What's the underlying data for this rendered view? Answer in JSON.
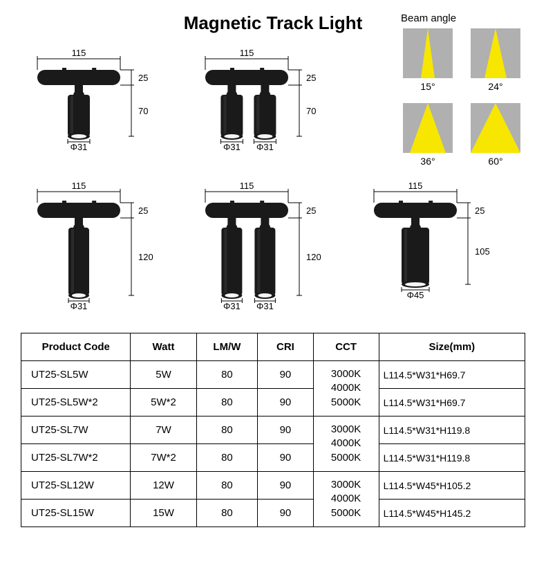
{
  "title": "Magnetic Track Light",
  "beam": {
    "title": "Beam angle",
    "options": [
      {
        "label": "15°",
        "half_base": 10
      },
      {
        "label": "24°",
        "half_base": 16
      },
      {
        "label": "36°",
        "half_base": 26
      },
      {
        "label": "60°",
        "half_base": 36
      }
    ],
    "box_bg": "#b0b0b0",
    "tri_color": "#f7e600"
  },
  "drawings": [
    {
      "id": "sl5w-single",
      "heads": 1,
      "row": 0,
      "dim_top": "115",
      "dim_track_h": "25",
      "dim_body_h": "70",
      "dim_dia": "Φ31",
      "body_len": 60,
      "body_dia": 32
    },
    {
      "id": "sl5w-double",
      "heads": 2,
      "row": 0,
      "dim_top": "115",
      "dim_track_h": "25",
      "dim_body_h": "70",
      "dim_dia": "Φ31",
      "body_len": 60,
      "body_dia": 32
    },
    {
      "id": "blank",
      "blank": true,
      "row": 0
    },
    {
      "id": "sl7w-single",
      "heads": 1,
      "row": 1,
      "dim_top": "115",
      "dim_track_h": "25",
      "dim_body_h": "120",
      "dim_dia": "Φ31",
      "body_len": 98,
      "body_dia": 30
    },
    {
      "id": "sl7w-double",
      "heads": 2,
      "row": 1,
      "dim_top": "115",
      "dim_track_h": "25",
      "dim_body_h": "120",
      "dim_dia": "Φ31",
      "body_len": 98,
      "body_dia": 30
    },
    {
      "id": "sl12w-single",
      "heads": 1,
      "row": 1,
      "dim_top": "115",
      "dim_track_h": "25",
      "dim_body_h": "105",
      "dim_dia": "Φ45",
      "body_len": 82,
      "body_dia": 40
    }
  ],
  "table": {
    "headers": [
      "Product Code",
      "Watt",
      "LM/W",
      "CRI",
      "CCT",
      "Size(mm)"
    ],
    "cct_group": "3000K\n4000K\n5000K",
    "rows": [
      {
        "code": "UT25-SL5W",
        "watt": "5W",
        "lmw": "80",
        "cri": "90",
        "size": "L114.5*W31*H69.7"
      },
      {
        "code": "UT25-SL5W*2",
        "watt": "5W*2",
        "lmw": "80",
        "cri": "90",
        "size": "L114.5*W31*H69.7"
      },
      {
        "code": "UT25-SL7W",
        "watt": "7W",
        "lmw": "80",
        "cri": "90",
        "size": "L114.5*W31*H119.8"
      },
      {
        "code": "UT25-SL7W*2",
        "watt": "7W*2",
        "lmw": "80",
        "cri": "90",
        "size": "L114.5*W31*H119.8"
      },
      {
        "code": "UT25-SL12W",
        "watt": "12W",
        "lmw": "80",
        "cri": "90",
        "size": "L114.5*W45*H105.2"
      },
      {
        "code": "UT25-SL15W",
        "watt": "15W",
        "lmw": "80",
        "cri": "90",
        "size": "L114.5*W45*H145.2"
      }
    ]
  },
  "colors": {
    "fixture_fill": "#1a1a1a",
    "fixture_highlight": "#4a4a4a",
    "lens": "#f5f5f5",
    "dim_line": "#000000"
  }
}
